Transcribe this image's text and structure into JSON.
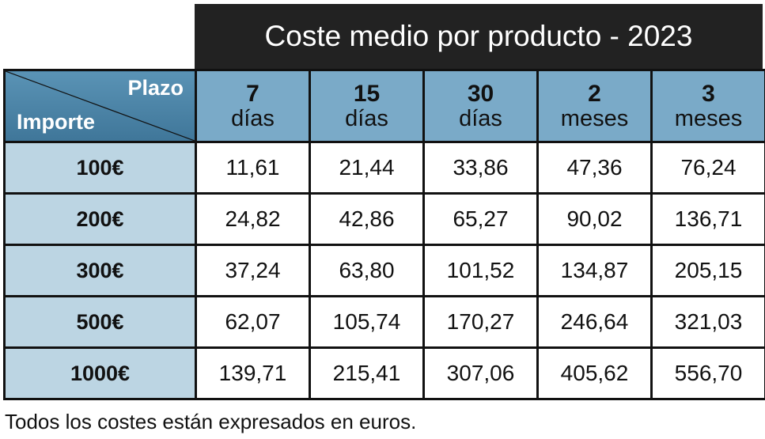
{
  "title": "Coste medio por producto - 2023",
  "corner": {
    "col_label": "Plazo",
    "row_label": "Importe"
  },
  "columns": [
    {
      "num": "7",
      "unit": "días"
    },
    {
      "num": "15",
      "unit": "días"
    },
    {
      "num": "30",
      "unit": "días"
    },
    {
      "num": "2",
      "unit": "meses"
    },
    {
      "num": "3",
      "unit": "meses"
    }
  ],
  "rows": [
    {
      "label": "100€",
      "values": [
        "11,61",
        "21,44",
        "33,86",
        "47,36",
        "76,24"
      ]
    },
    {
      "label": "200€",
      "values": [
        "24,82",
        "42,86",
        "65,27",
        "90,02",
        "136,71"
      ]
    },
    {
      "label": "300€",
      "values": [
        "37,24",
        "63,80",
        "101,52",
        "134,87",
        "205,15"
      ]
    },
    {
      "label": "500€",
      "values": [
        "62,07",
        "105,74",
        "170,27",
        "246,64",
        "321,03"
      ]
    },
    {
      "label": "1000€",
      "values": [
        "139,71",
        "215,41",
        "307,06",
        "405,62",
        "556,70"
      ]
    }
  ],
  "footnote": "Todos los costes están expresados en euros.",
  "colors": {
    "title_bg": "#222222",
    "corner_bg": "#4a84a8",
    "header_bg": "#7aaac8",
    "row_header_bg": "#bcd5e3"
  }
}
